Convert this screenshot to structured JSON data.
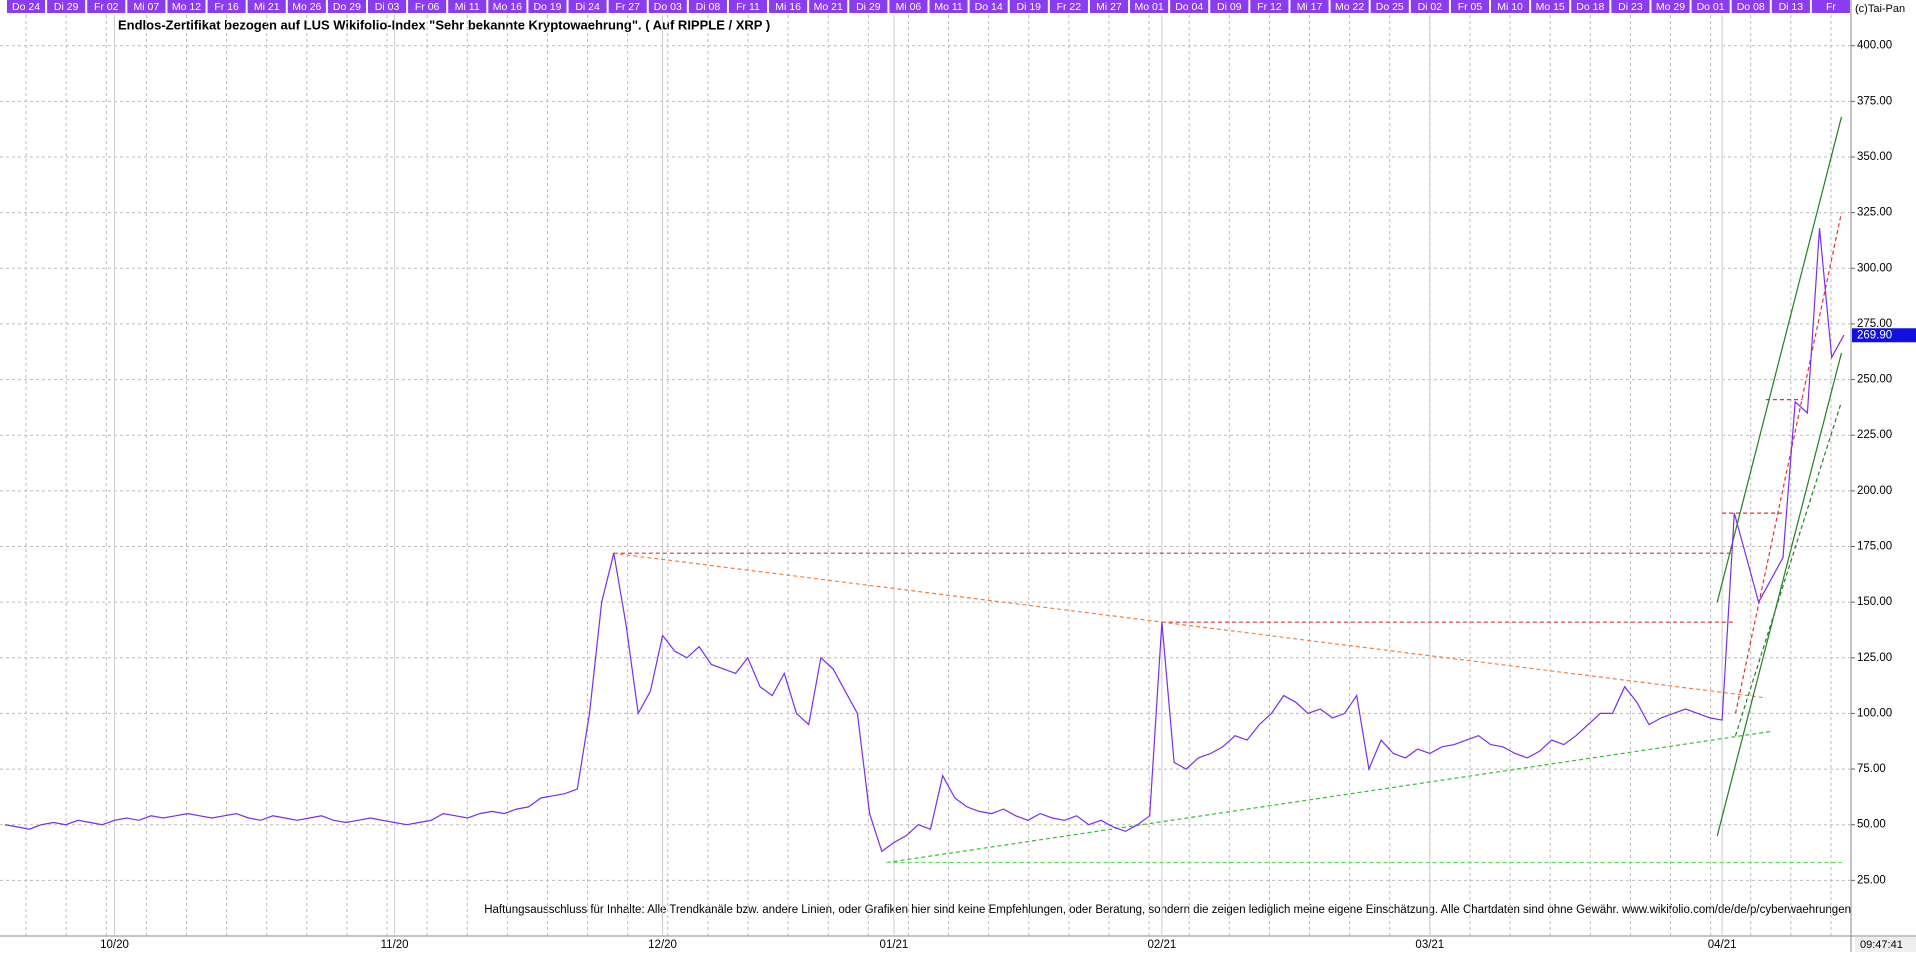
{
  "chart_data": {
    "type": "line",
    "title": "Endlos-Zertifikat bezogen auf LUS Wikifolio-Index \"Sehr bekannte Kryptowaehrung\". ( Auf RIPPLE / XRP )",
    "copyright": "(c)Tai-Pan",
    "disclaimer": "Haftungsausschluss für Inhalte: Alle Trendkanäle bzw. andere Linien, oder Grafiken hier sind keine Empfehlungen, oder Beratung, sondern die zeigen lediglich meine eigene Einschätzung. Alle Chartdaten sind ohne Gewähr.  www.wikifolio.com/de/de/p/cyberwaehrungen",
    "time": "09:47:41",
    "top_date_labels": [
      "Do 24",
      "Di 29",
      "Fr 02",
      "Mi 07",
      "Mo 12",
      "Fr 16",
      "Mi 21",
      "Mo 26",
      "Do 29",
      "Di 03",
      "Fr 06",
      "Mi 11",
      "Mo 16",
      "Do 19",
      "Di 24",
      "Fr 27",
      "Do 03",
      "Di 08",
      "Fr 11",
      "Mi 16",
      "Mo 21",
      "Di 29",
      "Mi 06",
      "Mo 11",
      "Do 14",
      "Di 19",
      "Fr 22",
      "Mi 27",
      "Mo 01",
      "Do 04",
      "Di 09",
      "Fr 12",
      "Mi 17",
      "Mo 22",
      "Do 25",
      "Di 02",
      "Fr 05",
      "Mi 10",
      "Mo 15",
      "Do 18",
      "Di 23",
      "Mo 29",
      "Do 01",
      "Do 08",
      "Di 13",
      "Fr"
    ],
    "categories": [
      null,
      null,
      null,
      null,
      null,
      null,
      null,
      null,
      null,
      "10/20",
      null,
      null,
      null,
      null,
      null,
      null,
      null,
      null,
      null,
      null,
      null,
      null,
      null,
      null,
      null,
      null,
      null,
      null,
      null,
      null,
      null,
      null,
      "11/20",
      null,
      null,
      null,
      null,
      null,
      null,
      null,
      null,
      null,
      null,
      null,
      null,
      null,
      null,
      null,
      null,
      null,
      null,
      null,
      null,
      null,
      "12/20",
      null,
      null,
      null,
      null,
      null,
      null,
      null,
      null,
      null,
      null,
      null,
      null,
      null,
      null,
      null,
      null,
      null,
      null,
      "01/21",
      null,
      null,
      null,
      null,
      null,
      null,
      null,
      null,
      null,
      null,
      null,
      null,
      null,
      null,
      null,
      null,
      null,
      null,
      null,
      null,
      null,
      "02/21",
      null,
      null,
      null,
      null,
      null,
      null,
      null,
      null,
      null,
      null,
      null,
      null,
      null,
      null,
      null,
      null,
      null,
      null,
      null,
      null,
      null,
      "03/21",
      null,
      null,
      null,
      null,
      null,
      null,
      null,
      null,
      null,
      null,
      null,
      null,
      null,
      null,
      null,
      null,
      null,
      null,
      null,
      null,
      null,
      null,
      null,
      "04/21",
      null,
      null,
      null,
      null,
      null,
      null,
      null,
      null,
      null,
      null
    ],
    "series": [
      {
        "color": "#7b2cf0",
        "values": [
          50,
          49,
          48,
          50,
          51,
          50,
          52,
          51,
          50,
          52,
          53,
          52,
          54,
          53,
          54,
          55,
          54,
          53,
          54,
          55,
          53,
          52,
          54,
          53,
          52,
          53,
          54,
          52,
          51,
          52,
          53,
          52,
          51,
          50,
          51,
          52,
          55,
          54,
          53,
          55,
          56,
          55,
          57,
          58,
          62,
          63,
          64,
          66,
          100,
          150,
          172,
          140,
          100,
          110,
          135,
          128,
          125,
          130,
          122,
          120,
          118,
          125,
          112,
          108,
          118,
          100,
          95,
          125,
          120,
          110,
          100,
          55,
          38,
          42,
          45,
          50,
          48,
          72,
          62,
          58,
          56,
          55,
          57,
          54,
          52,
          55,
          53,
          52,
          54,
          50,
          52,
          49,
          47,
          50,
          54,
          141,
          78,
          75,
          80,
          82,
          85,
          90,
          88,
          95,
          100,
          108,
          105,
          100,
          102,
          98,
          100,
          108,
          75,
          88,
          82,
          80,
          84,
          82,
          85,
          86,
          88,
          90,
          86,
          85,
          82,
          80,
          83,
          88,
          86,
          90,
          95,
          100,
          100,
          112,
          105,
          95,
          98,
          100,
          102,
          100,
          98,
          97,
          190,
          170,
          150,
          160,
          170,
          240,
          235,
          318,
          260,
          270
        ]
      }
    ],
    "last_price": {
      "value": 269.9,
      "label": "269.90"
    },
    "trend_lines": [
      {
        "color": "#e03030",
        "dash": true,
        "from": [
          50,
          172
        ],
        "to": [
          142,
          172
        ]
      },
      {
        "color": "#e03030",
        "dash": true,
        "from": [
          95,
          141
        ],
        "to": [
          142,
          141
        ]
      },
      {
        "color": "#e03030",
        "dash": true,
        "from": [
          141,
          190
        ],
        "to": [
          146,
          190
        ]
      },
      {
        "color": "#e03030",
        "dash": true,
        "from": [
          144.6,
          241
        ],
        "to": [
          147.6,
          241
        ]
      },
      {
        "color": "#e03030",
        "dash": true,
        "from": [
          142.1,
          100
        ],
        "to": [
          150.8,
          325
        ]
      },
      {
        "color": "#f08040",
        "dash": true,
        "from": [
          49.9,
          172
        ],
        "to": [
          144.6,
          107
        ]
      },
      {
        "color": "#30c030",
        "dash": true,
        "from": [
          72.4,
          33
        ],
        "to": [
          145.1,
          92
        ]
      },
      {
        "color": "#50e050",
        "dash": true,
        "from": [
          72.4,
          33
        ],
        "to": [
          150.8,
          33
        ]
      },
      {
        "color": "#208020",
        "dash": false,
        "from": [
          140.6,
          45
        ],
        "to": [
          150.8,
          262
        ]
      },
      {
        "color": "#208020",
        "dash": false,
        "from": [
          140.6,
          150
        ],
        "to": [
          150.8,
          368
        ]
      },
      {
        "color": "#208020",
        "dash": true,
        "from": [
          142.1,
          90
        ],
        "to": [
          150.8,
          240
        ]
      }
    ],
    "ylim": [
      0,
      413.8
    ],
    "yticks": [
      {
        "value": 25,
        "label": "25.00"
      },
      {
        "value": 50,
        "label": "50.00"
      },
      {
        "value": 75,
        "label": "75.00"
      },
      {
        "value": 100,
        "label": "100.00"
      },
      {
        "value": 125,
        "label": "125.00"
      },
      {
        "value": 150,
        "label": "150.00"
      },
      {
        "value": 175,
        "label": "175.00"
      },
      {
        "value": 200,
        "label": "200.00"
      },
      {
        "value": 225,
        "label": "225.00"
      },
      {
        "value": 250,
        "label": "250.00"
      },
      {
        "value": 275,
        "label": "275.00"
      },
      {
        "value": 300,
        "label": "300.00"
      },
      {
        "value": 325,
        "label": "325.00"
      },
      {
        "value": 350,
        "label": "350.00"
      },
      {
        "value": 375,
        "label": "375.00"
      },
      {
        "value": 400,
        "label": "400.00"
      }
    ],
    "grid": true
  }
}
